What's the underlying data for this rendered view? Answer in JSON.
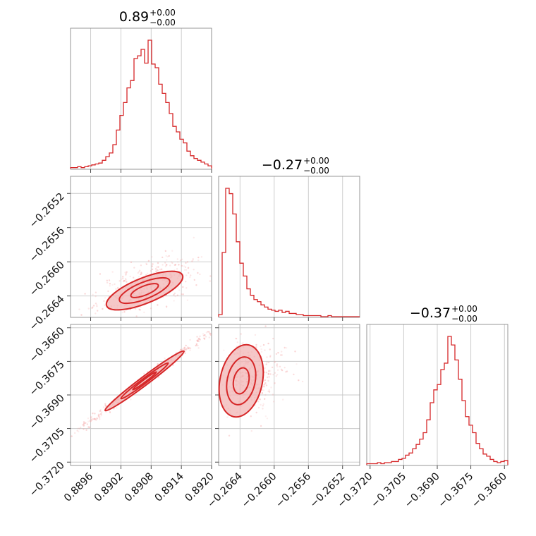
{
  "chart_data": {
    "type": "corner",
    "color": "#d62728",
    "grid": true,
    "titles": [
      {
        "main": "0.89",
        "plus": "+0.00",
        "minus": "−0.00"
      },
      {
        "main": "−0.27",
        "plus": "+0.00",
        "minus": "−0.00"
      },
      {
        "main": "−0.37",
        "plus": "+0.00",
        "minus": "−0.00"
      }
    ],
    "params": [
      {
        "range": [
          0.8892,
          0.892
        ],
        "ticks": [
          0.8896,
          0.8902,
          0.8908,
          0.8914,
          0.892
        ],
        "tick_labels": [
          "0.8896",
          "0.8902",
          "0.8908",
          "0.8914",
          "0.8920"
        ]
      },
      {
        "range": [
          -0.26665,
          -0.265
        ],
        "ticks": [
          -0.2664,
          -0.266,
          -0.2656,
          -0.2652
        ],
        "tick_labels": [
          "−0.2664",
          "−0.2660",
          "−0.2656",
          "−0.2652"
        ]
      },
      {
        "range": [
          -0.37215,
          -0.36585
        ],
        "ticks": [
          -0.372,
          -0.3705,
          -0.369,
          -0.3675,
          -0.366
        ],
        "tick_labels": [
          "−0.3720",
          "−0.3705",
          "−0.3690",
          "−0.3675",
          "−0.3660"
        ]
      }
    ],
    "histograms": [
      {
        "param": 0,
        "bin_edges": [
          0.8892,
          0.892
        ],
        "counts": [
          1,
          1,
          2,
          1,
          2,
          3,
          4,
          5,
          6,
          9,
          13,
          17,
          26,
          42,
          58,
          72,
          88,
          96,
          120,
          123,
          130,
          115,
          140,
          114,
          110,
          92,
          82,
          72,
          60,
          46,
          40,
          32,
          28,
          19,
          14,
          11,
          9,
          7,
          5,
          3
        ]
      },
      {
        "param": 1,
        "bin_edges": [
          -0.26665,
          -0.265
        ],
        "counts": [
          2,
          60,
          120,
          115,
          96,
          70,
          50,
          38,
          26,
          20,
          16,
          14,
          11,
          9,
          7,
          6,
          5,
          6,
          4,
          5,
          3,
          3,
          2,
          2,
          1,
          1,
          1,
          1,
          1,
          0,
          0,
          1,
          0,
          0,
          0,
          0,
          0,
          0,
          0,
          0
        ]
      },
      {
        "param": 2,
        "bin_edges": [
          -0.37215,
          -0.36585
        ],
        "counts": [
          1,
          1,
          1,
          2,
          1,
          2,
          2,
          3,
          3,
          5,
          6,
          9,
          11,
          15,
          19,
          24,
          30,
          42,
          58,
          70,
          75,
          89,
          95,
          120,
          112,
          98,
          80,
          60,
          45,
          37,
          30,
          20,
          15,
          10,
          8,
          5,
          3,
          2,
          3,
          4
        ]
      }
    ],
    "scatter_centers": [
      {
        "pair": [
          0,
          1
        ],
        "center": [
          0.89075,
          -0.26625
        ],
        "description_unused": ""
      },
      {
        "pair": [
          0,
          2
        ],
        "center": [
          0.89075,
          -0.3684
        ]
      },
      {
        "pair": [
          1,
          2
        ],
        "center": [
          -0.26645,
          -0.36875
        ]
      }
    ]
  }
}
